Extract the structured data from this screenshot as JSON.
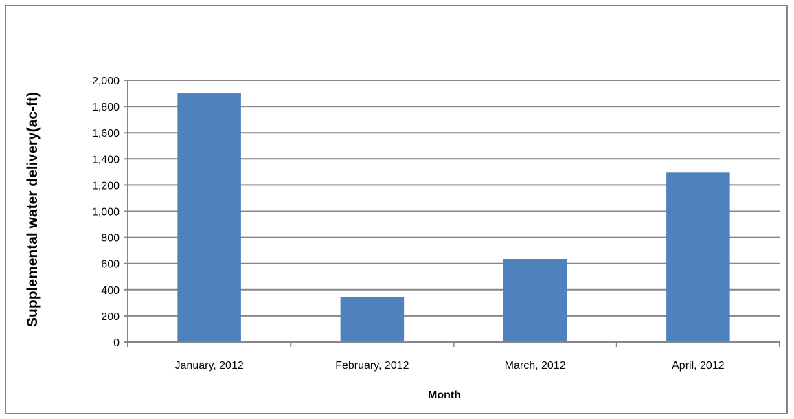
{
  "chart_data": {
    "type": "bar",
    "title": "",
    "xlabel": "Month",
    "ylabel": "Supplemental water delivery(ac-ft)",
    "categories": [
      "January, 2012",
      "February, 2012",
      "March, 2012",
      "April, 2012"
    ],
    "values": [
      1900,
      345,
      635,
      1295
    ],
    "ylim": [
      0,
      2000
    ],
    "yticks": [
      0,
      200,
      400,
      600,
      800,
      1000,
      1200,
      1400,
      1600,
      1800,
      2000
    ],
    "ytick_labels": [
      "0",
      "200",
      "400",
      "600",
      "800",
      "1,000",
      "1,200",
      "1,400",
      "1,600",
      "1,800",
      "2,000"
    ],
    "grid": true,
    "legend": "none",
    "colors": {
      "bar": "#4f81bd",
      "grid": "#868686",
      "axis": "#868686",
      "frame": "#868686"
    }
  }
}
